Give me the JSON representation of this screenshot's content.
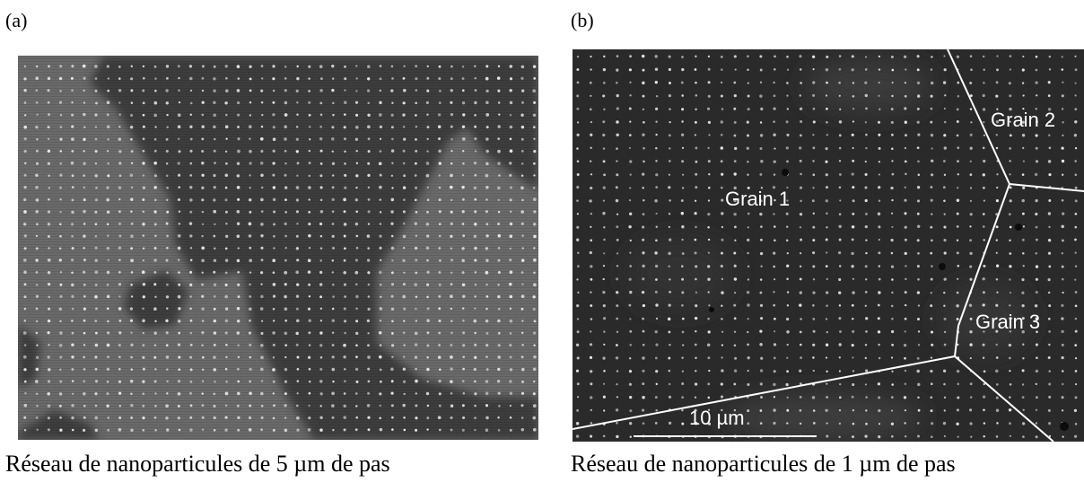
{
  "panels": {
    "a": {
      "label": "(a)",
      "caption": "Réseau de nanoparticules de 5 µm de pas"
    },
    "b": {
      "label": "(b)",
      "caption": "Réseau de nanoparticules de 1 µm de pas",
      "grains": [
        "Grain 1",
        "Grain 2",
        "Grain 3"
      ],
      "scale_bar": "10 µm"
    }
  },
  "colors": {
    "dots": "#e8e8e8",
    "boundary": "#ffffff"
  }
}
